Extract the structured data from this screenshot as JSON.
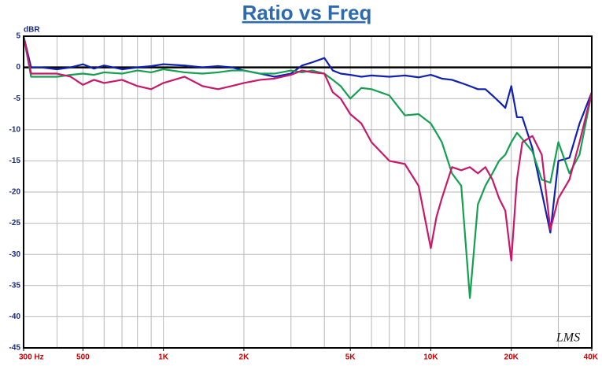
{
  "chart_data": {
    "type": "line",
    "title": "Ratio vs Freq",
    "y_label": "dBR",
    "watermark": "LMS",
    "log_x": true,
    "grid": true,
    "x": [
      300,
      320,
      350,
      400,
      450,
      500,
      550,
      600,
      700,
      800,
      900,
      1000,
      1200,
      1400,
      1600,
      1800,
      2000,
      2300,
      2600,
      3000,
      3300,
      3600,
      4000,
      4300,
      4600,
      5000,
      5500,
      6000,
      7000,
      8000,
      9000,
      10000,
      10500,
      11000,
      12000,
      13000,
      14000,
      15000,
      16000,
      17000,
      18000,
      19000,
      20000,
      21000,
      22000,
      24000,
      26000,
      28000,
      30000,
      33000,
      36000,
      40000
    ],
    "series": [
      {
        "name": "blue",
        "color": "#1020b0",
        "values": [
          5,
          0,
          0,
          -0.3,
          0,
          0.5,
          -0.2,
          0.3,
          -0.3,
          0,
          0.2,
          0.5,
          0.3,
          0,
          0.2,
          0,
          -0.5,
          -1,
          -1.5,
          -1,
          0.3,
          0.8,
          1.5,
          -0.5,
          -1,
          -1.2,
          -1.5,
          -1.3,
          -1.5,
          -1.3,
          -1.6,
          -1.2,
          -1.5,
          -1.8,
          -2,
          -2.5,
          -3,
          -3.5,
          -3.5,
          -4.5,
          -5.5,
          -6.5,
          -3,
          -8,
          -8,
          -13,
          -20,
          -26.5,
          -15,
          -14.5,
          -9,
          -4
        ]
      },
      {
        "name": "green",
        "color": "#14a050",
        "values": [
          5,
          -1.5,
          -1.5,
          -1.5,
          -1.2,
          -1,
          -1.2,
          -0.8,
          -1,
          -0.5,
          -0.8,
          -0.3,
          -0.8,
          -1,
          -0.8,
          -0.5,
          -0.5,
          -1,
          -1,
          -0.5,
          -0.8,
          -0.5,
          -1,
          -2,
          -3,
          -5,
          -3.3,
          -3.5,
          -4.5,
          -7.7,
          -7.5,
          -9,
          -10.5,
          -12,
          -17,
          -19,
          -37,
          -22,
          -19,
          -17,
          -15,
          -14,
          -12,
          -10.5,
          -11.5,
          -13.5,
          -18,
          -18.5,
          -12,
          -17,
          -14,
          -4
        ]
      },
      {
        "name": "magenta",
        "color": "#c8186a",
        "values": [
          5,
          -1,
          -1,
          -1,
          -1.5,
          -2.8,
          -2,
          -2.5,
          -2,
          -3,
          -3.5,
          -2.5,
          -1.5,
          -3,
          -3.5,
          -3,
          -2.5,
          -2,
          -1.8,
          -1.2,
          -0.5,
          -0.8,
          -1,
          -4,
          -5,
          -7.5,
          -9,
          -12,
          -15,
          -15.5,
          -19,
          -29,
          -24,
          -21,
          -16,
          -16.5,
          -16,
          -17,
          -16,
          -18,
          -21,
          -23,
          -31,
          -18,
          -12,
          -11,
          -14,
          -26,
          -21,
          -18,
          -12,
          -4
        ]
      }
    ],
    "xlim": [
      300,
      40000
    ],
    "xticks": [
      {
        "value": 300,
        "label": "300  Hz"
      },
      500,
      {
        "value": 1000,
        "label": "1K"
      },
      {
        "value": 2000,
        "label": "2K"
      },
      {
        "value": 5000,
        "label": "5K"
      },
      {
        "value": 10000,
        "label": "10K"
      },
      {
        "value": 20000,
        "label": "20K"
      },
      {
        "value": 40000,
        "label": "40K"
      }
    ],
    "xgrid_minor": [
      400,
      500,
      600,
      700,
      800,
      900,
      1000,
      2000,
      3000,
      4000,
      5000,
      6000,
      7000,
      8000,
      9000,
      10000,
      20000,
      30000
    ],
    "ylim": [
      -45,
      5
    ],
    "yticks": [
      5,
      0,
      -5,
      -10,
      -15,
      -20,
      -25,
      -30,
      -35,
      -40,
      -45
    ]
  }
}
